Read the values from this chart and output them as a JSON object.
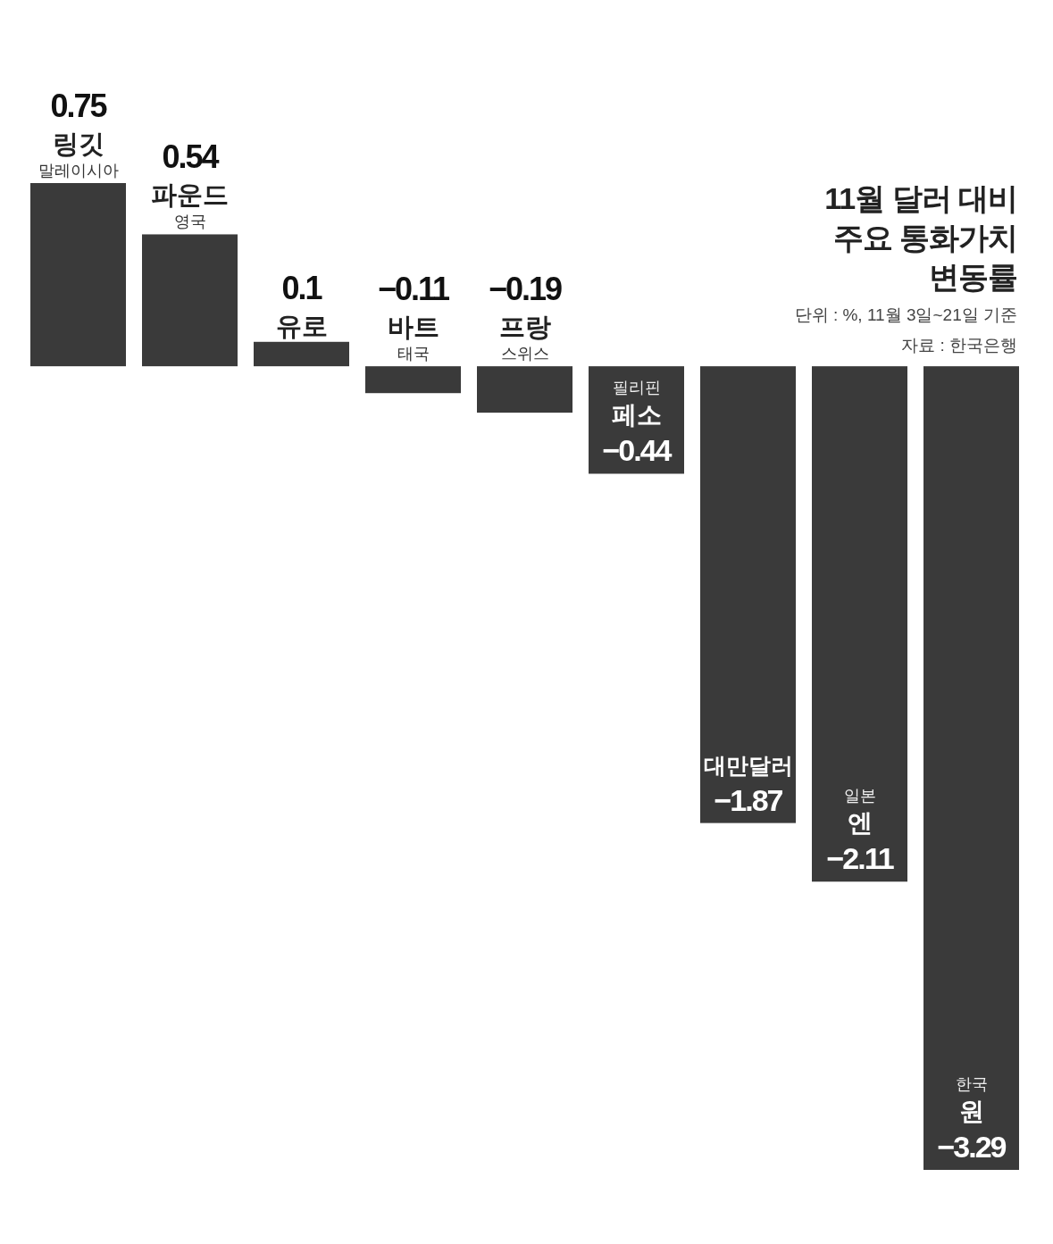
{
  "chart_data": {
    "type": "bar",
    "title": "11월 달러 대비 주요 통화가치 변동률",
    "annotations": [
      "단위 : %, 11월 3일~21일 기준",
      "자료 : 한국은행"
    ],
    "categories": [
      "링깃 말레이시아",
      "파운드 영국",
      "유로",
      "바트 태국",
      "프랑 스위스",
      "필리핀 페소",
      "대만달러",
      "일본 엔",
      "한국 원"
    ],
    "values": [
      0.75,
      0.54,
      0.1,
      -0.11,
      -0.19,
      -0.44,
      -1.87,
      -2.11,
      -3.29
    ],
    "color": "#3a3a3a",
    "data_labels": true
  }
}
